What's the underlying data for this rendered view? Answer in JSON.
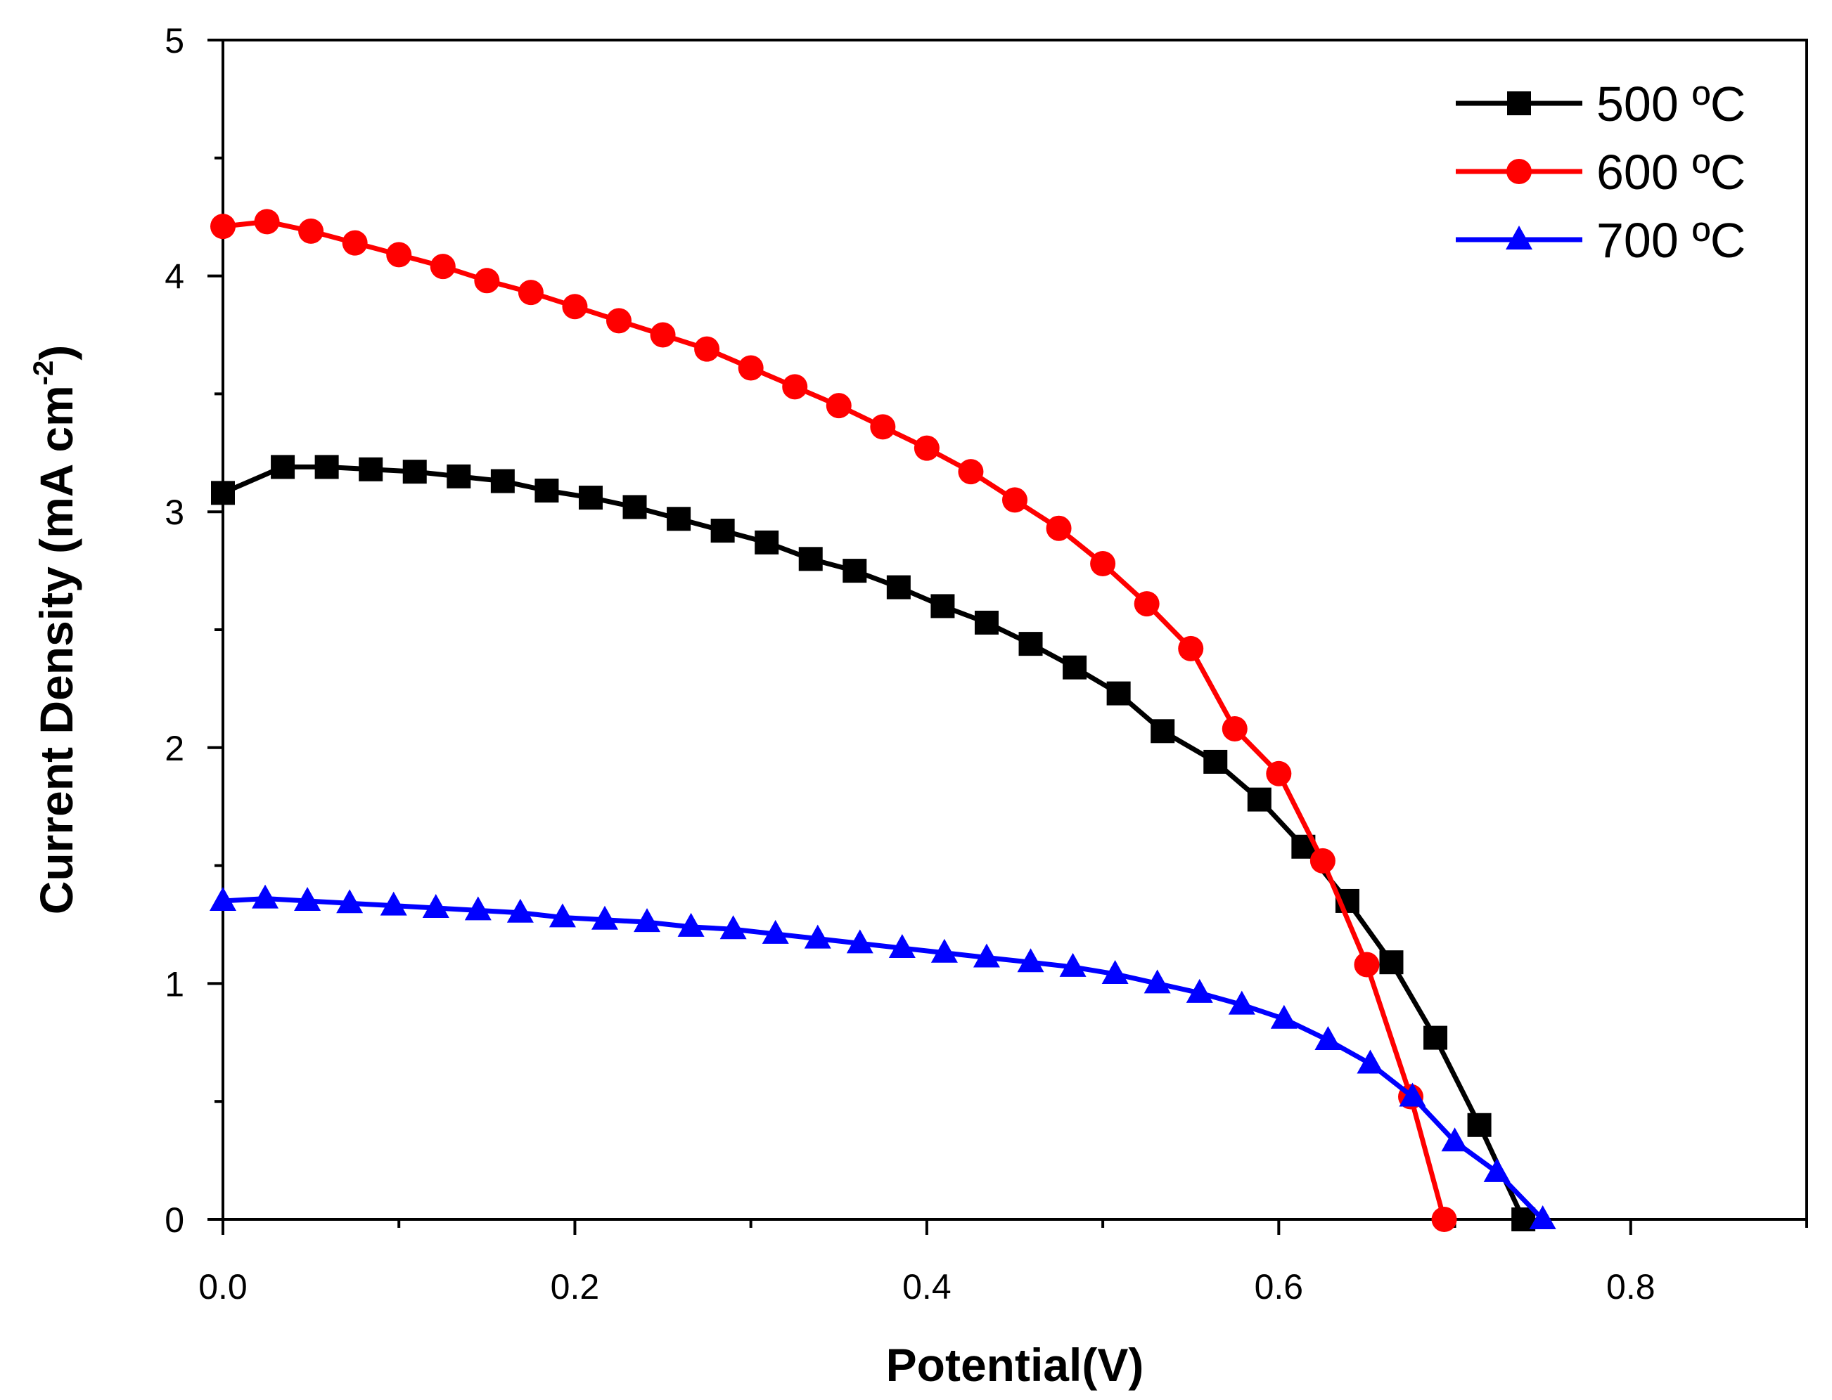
{
  "chart_data": {
    "type": "line",
    "xlabel": "Potential(V)",
    "ylabel": "Current Density (mA cm",
    "ylabel_sup": "-2",
    "ylabel_end": ")",
    "xlim": [
      0.0,
      0.9
    ],
    "ylim": [
      0,
      5
    ],
    "x_ticks": [
      0.0,
      0.2,
      0.4,
      0.6,
      0.8
    ],
    "x_tick_labels": [
      "0.0",
      "0.2",
      "0.4",
      "0.6",
      "0.8"
    ],
    "y_ticks": [
      0,
      1,
      2,
      3,
      4,
      5
    ],
    "y_tick_labels": [
      "0",
      "1",
      "2",
      "3",
      "4",
      "5"
    ],
    "grid": false,
    "legend_position": "top-right",
    "series": [
      {
        "name": "500 ºC",
        "color": "#000000",
        "marker": "square",
        "x": [
          0.0,
          0.034,
          0.059,
          0.084,
          0.109,
          0.134,
          0.159,
          0.184,
          0.209,
          0.234,
          0.259,
          0.284,
          0.309,
          0.334,
          0.359,
          0.384,
          0.409,
          0.434,
          0.459,
          0.484,
          0.509,
          0.534,
          0.564,
          0.589,
          0.614,
          0.639,
          0.664,
          0.689,
          0.714,
          0.739
        ],
        "y": [
          3.08,
          3.19,
          3.19,
          3.18,
          3.17,
          3.15,
          3.13,
          3.09,
          3.06,
          3.02,
          2.97,
          2.92,
          2.87,
          2.8,
          2.75,
          2.68,
          2.6,
          2.53,
          2.44,
          2.34,
          2.23,
          2.07,
          1.94,
          1.78,
          1.58,
          1.35,
          1.09,
          0.77,
          0.4,
          0.0
        ]
      },
      {
        "name": "600 ºC",
        "color": "#ff0000",
        "marker": "circle",
        "x": [
          0.0,
          0.025,
          0.05,
          0.075,
          0.1,
          0.125,
          0.15,
          0.175,
          0.2,
          0.225,
          0.25,
          0.275,
          0.3,
          0.325,
          0.35,
          0.375,
          0.4,
          0.425,
          0.45,
          0.475,
          0.5,
          0.525,
          0.55,
          0.575,
          0.6,
          0.625,
          0.65,
          0.675,
          0.694
        ],
        "y": [
          4.21,
          4.23,
          4.19,
          4.14,
          4.09,
          4.04,
          3.98,
          3.93,
          3.87,
          3.81,
          3.75,
          3.69,
          3.61,
          3.53,
          3.45,
          3.36,
          3.27,
          3.17,
          3.05,
          2.93,
          2.78,
          2.61,
          2.42,
          2.08,
          1.89,
          1.52,
          1.08,
          0.52,
          0.0
        ]
      },
      {
        "name": "700 ºC",
        "color": "#0000ff",
        "marker": "triangle",
        "x": [
          0.0,
          0.024,
          0.048,
          0.072,
          0.097,
          0.121,
          0.145,
          0.169,
          0.193,
          0.217,
          0.241,
          0.266,
          0.29,
          0.314,
          0.338,
          0.362,
          0.386,
          0.41,
          0.434,
          0.459,
          0.483,
          0.507,
          0.531,
          0.555,
          0.579,
          0.603,
          0.628,
          0.652,
          0.676,
          0.7,
          0.724,
          0.75
        ],
        "y": [
          1.35,
          1.36,
          1.35,
          1.34,
          1.33,
          1.32,
          1.31,
          1.3,
          1.28,
          1.27,
          1.26,
          1.24,
          1.23,
          1.21,
          1.19,
          1.17,
          1.15,
          1.13,
          1.11,
          1.09,
          1.07,
          1.04,
          1.0,
          0.96,
          0.91,
          0.85,
          0.76,
          0.66,
          0.52,
          0.33,
          0.2,
          0.0
        ]
      }
    ]
  }
}
